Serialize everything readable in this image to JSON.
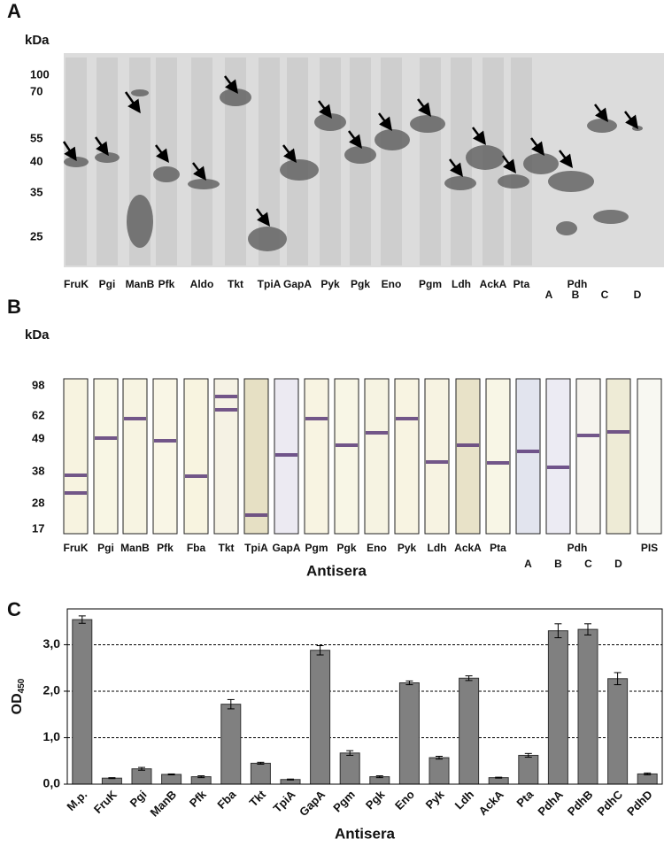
{
  "panels": {
    "A": {
      "label": "A",
      "unit": "kDa",
      "markers": [
        "100",
        "70",
        "55",
        "40",
        "35",
        "25"
      ],
      "lanes": [
        "FruK",
        "Pgi",
        "ManB",
        "Pfk",
        "Aldo",
        "Tkt",
        "TpiA",
        "GapA",
        "Pyk",
        "Pgk",
        "Eno",
        "Pgm",
        "Ldh",
        "AckA",
        "Pta"
      ],
      "group_label": "Pdh",
      "group_lanes": [
        "A",
        "B",
        "C",
        "D"
      ]
    },
    "B": {
      "label": "B",
      "unit": "kDa",
      "markers": [
        "98",
        "62",
        "49",
        "38",
        "28",
        "17"
      ],
      "lanes": [
        "FruK",
        "Pgi",
        "ManB",
        "Pfk",
        "Fba",
        "Tkt",
        "TpiA",
        "GapA",
        "Pgm",
        "Pgk",
        "Eno",
        "Pyk",
        "Ldh",
        "AckA",
        "Pta"
      ],
      "group_label": "Pdh",
      "group_lanes": [
        "A",
        "B",
        "C",
        "D"
      ],
      "control": "PIS",
      "xlabel": "Antisera"
    }
  },
  "chart_data": {
    "type": "bar",
    "panel_label": "C",
    "ylabel": "OD",
    "ylabel_sub": "450",
    "xlabel": "Antisera",
    "categories": [
      "M.p.",
      "FruK",
      "Pgi",
      "ManB",
      "Pfk",
      "Fba",
      "Tkt",
      "TpiA",
      "GapA",
      "Pgm",
      "Pgk",
      "Eno",
      "Pyk",
      "Ldh",
      "AckA",
      "Pta",
      "PdhA",
      "PdhB",
      "PdhC",
      "PdhD"
    ],
    "values": [
      3.54,
      0.13,
      0.33,
      0.21,
      0.16,
      1.72,
      0.45,
      0.1,
      2.88,
      0.67,
      0.16,
      2.18,
      0.57,
      2.28,
      0.14,
      0.62,
      3.3,
      3.33,
      2.27,
      0.22
    ],
    "errors": [
      0.08,
      0.01,
      0.03,
      0.01,
      0.02,
      0.1,
      0.02,
      0.01,
      0.1,
      0.05,
      0.02,
      0.04,
      0.03,
      0.05,
      0.01,
      0.04,
      0.15,
      0.12,
      0.13,
      0.02
    ],
    "color": "#808080",
    "ylim": [
      0,
      3.77
    ],
    "yticks": [
      {
        "value": 0,
        "label": "0,0"
      },
      {
        "value": 1,
        "label": "1,0"
      },
      {
        "value": 2,
        "label": "2,0"
      },
      {
        "value": 3,
        "label": "3,0"
      }
    ],
    "grid": true
  }
}
